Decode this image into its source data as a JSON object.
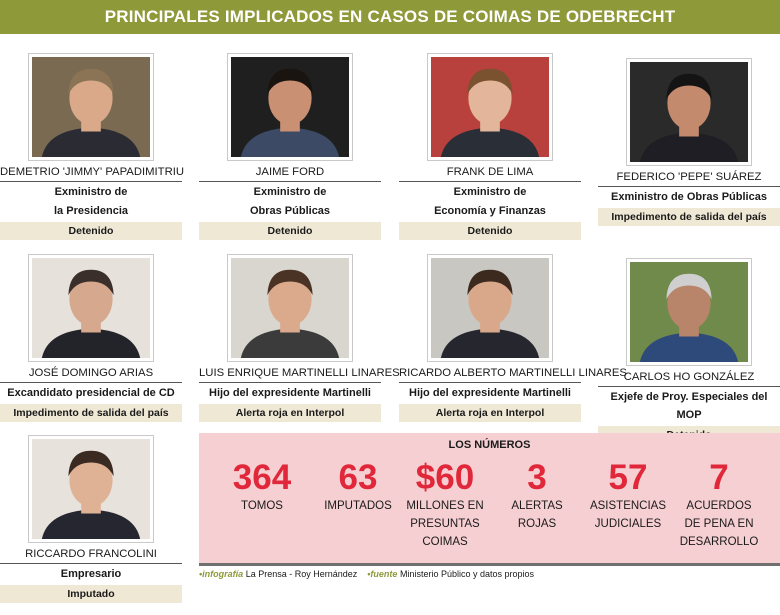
{
  "header": {
    "title": "PRINCIPALES IMPLICADOS EN CASOS DE COIMAS DE ODEBRECHT"
  },
  "people": [
    {
      "name": "DEMETRIO 'JIMMY' PAPADIMITRIU",
      "role_line1": "Exministro de",
      "role_line2": "la Presidencia",
      "status": "Detenido",
      "colors": {
        "bg": "#7a6a52",
        "skin": "#d9a98a",
        "hair": "#8b7355",
        "suit": "#2b2b33"
      }
    },
    {
      "name": "JAIME FORD",
      "role_line1": "Exministro de",
      "role_line2": "Obras Públicas",
      "status": "Detenido",
      "colors": {
        "bg": "#1f1f1f",
        "skin": "#c99073",
        "hair": "#1a1410",
        "suit": "#3c4a66"
      }
    },
    {
      "name": "FRANK DE LIMA",
      "role_line1": "Exministro de",
      "role_line2": "Economía y Finanzas",
      "status": "Detenido",
      "colors": {
        "bg": "#b9413d",
        "skin": "#e3b59a",
        "hair": "#7a5230",
        "suit": "#2a2e36"
      }
    },
    {
      "name": "FEDERICO 'PEPE' SUÁREZ",
      "role_line1": "Exministro de Obras Públicas",
      "role_line2": "",
      "status": "Impedimento de salida del país",
      "colors": {
        "bg": "#2a2a2a",
        "skin": "#c48a6d",
        "hair": "#141414",
        "suit": "#1e1e24"
      }
    },
    {
      "name": "JOSÉ DOMINGO ARIAS",
      "role_line1": "Excandidato presidencial de CD",
      "role_line2": "",
      "status": "Impedimento de salida del país",
      "colors": {
        "bg": "#e6e1da",
        "skin": "#d6a88d",
        "hair": "#3a2f2a",
        "suit": "#23232a"
      }
    },
    {
      "name": "LUIS ENRIQUE MARTINELLI LINARES",
      "role_line1": "Hijo del expresidente Martinelli",
      "role_line2": "",
      "status": "Alerta roja en Interpol",
      "colors": {
        "bg": "#d8d6cf",
        "skin": "#dba98c",
        "hair": "#4a3324",
        "suit": "#3b3b3b"
      }
    },
    {
      "name": "RICARDO ALBERTO MARTINELLI LINARES",
      "role_line1": "Hijo del expresidente Martinelli",
      "role_line2": "",
      "status": "Alerta roja en Interpol",
      "colors": {
        "bg": "#c9c7c1",
        "skin": "#d9a88a",
        "hair": "#3c2a1e",
        "suit": "#26262e"
      }
    },
    {
      "name": "CARLOS HO GONZÁLEZ",
      "role_line1": "Exjefe de Proy. Especiales del MOP",
      "role_line2": "",
      "status": "Detenido",
      "colors": {
        "bg": "#6f8a4a",
        "skin": "#b8856a",
        "hair": "#cfcfcf",
        "suit": "#2e4a7a"
      }
    },
    {
      "name": "RICCARDO FRANCOLINI",
      "role_line1": "Empresario",
      "role_line2": "",
      "status": "Imputado",
      "colors": {
        "bg": "#e7e2dc",
        "skin": "#e0b295",
        "hair": "#3a2a22",
        "suit": "#262631"
      }
    }
  ],
  "numbers": {
    "title": "LOS NÚMEROS",
    "items": [
      {
        "value": "364",
        "label_lines": [
          "TOMOS"
        ]
      },
      {
        "value": "63",
        "label_lines": [
          "IMPUTADOS"
        ]
      },
      {
        "value": "$60",
        "label_lines": [
          "MILLONES EN",
          "PRESUNTAS",
          "COIMAS"
        ]
      },
      {
        "value": "3",
        "label_lines": [
          "ALERTAS",
          "ROJAS"
        ]
      },
      {
        "value": "57",
        "label_lines": [
          "ASISTENCIAS",
          "JUDICIALES"
        ]
      },
      {
        "value": "7",
        "label_lines": [
          "ACUERDOS",
          "DE PENA EN",
          "DESARROLLO"
        ]
      }
    ]
  },
  "credits": {
    "infografia_key": "infografía",
    "infografia_value": "La Prensa - Roy Hernández",
    "fuente_key": "fuente",
    "fuente_value": "Ministerio Público y datos propios"
  },
  "colors": {
    "banner": "#8e9a3a",
    "status_bg": "#efe8d5",
    "numbers_bg": "#f6cfd2",
    "accent_red": "#e0283a"
  }
}
